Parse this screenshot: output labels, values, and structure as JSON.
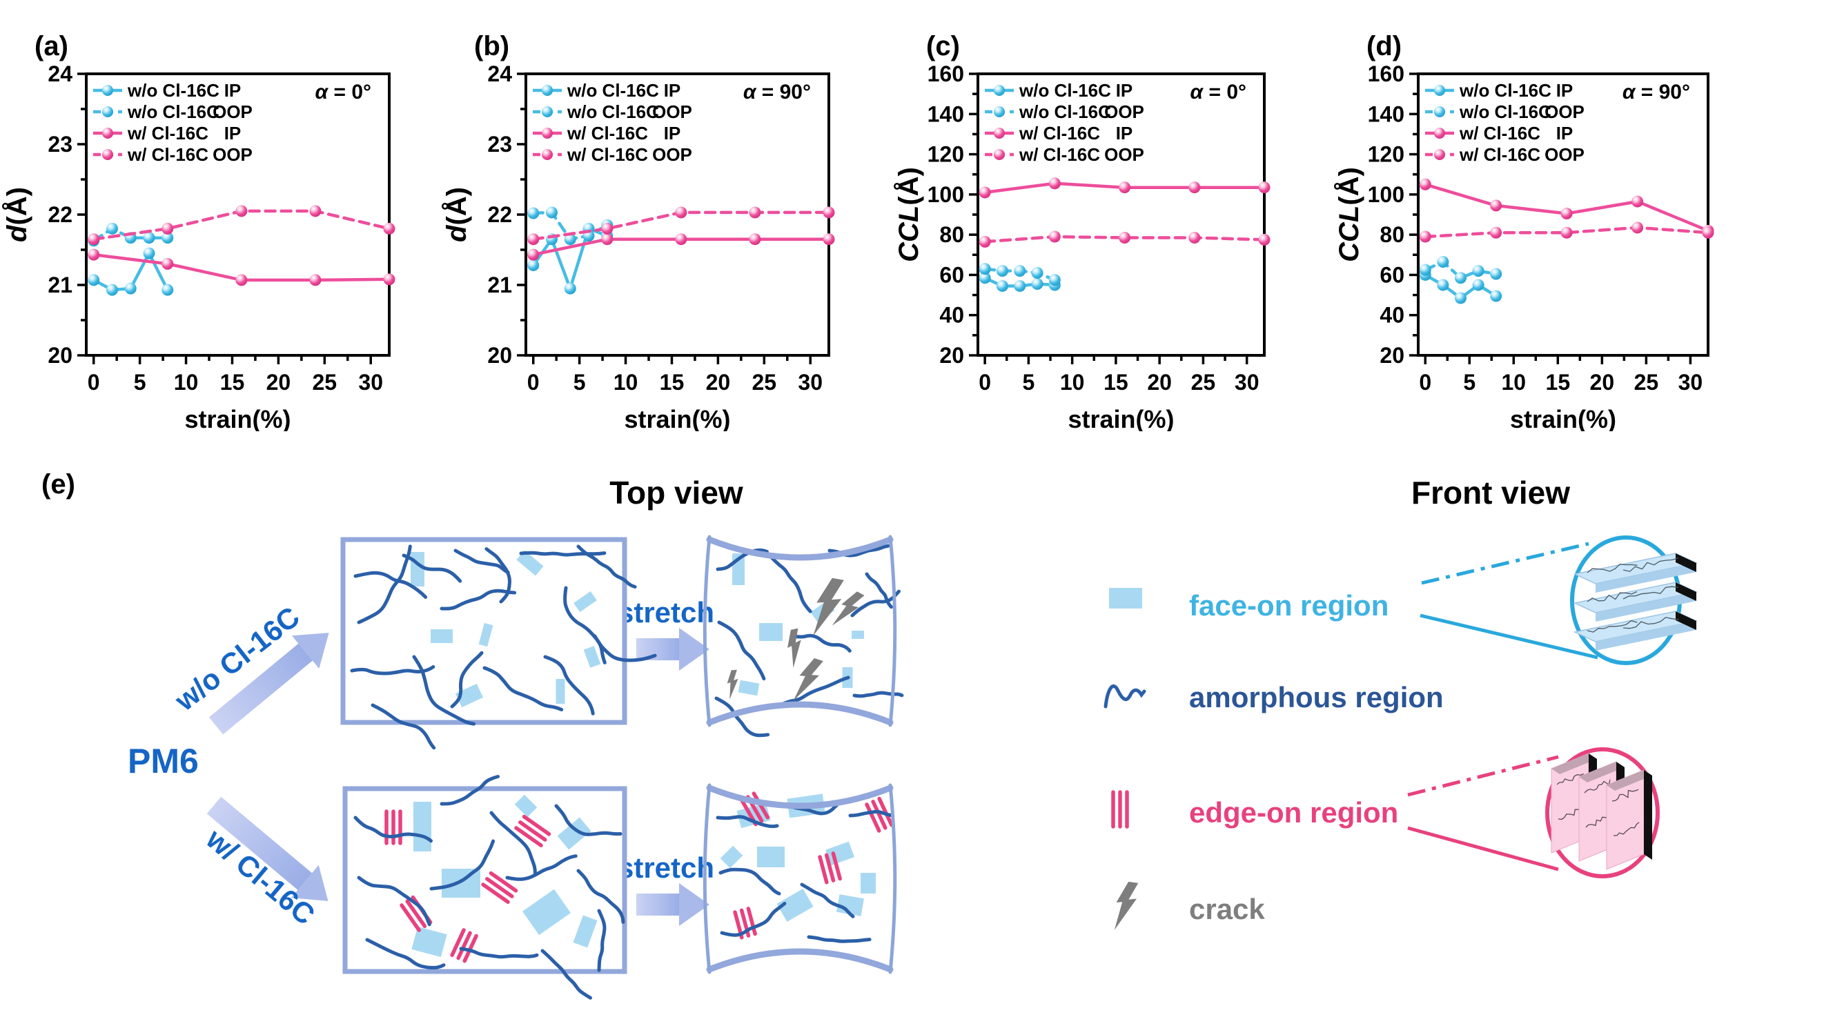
{
  "colors": {
    "cyan": "#45BCE5",
    "cyan_dark": "#1d9cc9",
    "pink": "#EE4D9B",
    "pink_dark": "#d42e7f",
    "axis": "#000000"
  },
  "chart_data": [
    {
      "key": "a",
      "type": "line",
      "panel_label": "(a)",
      "alpha_symbol": "α",
      "alpha_rest": " =  0°",
      "ylabel_italic": "d",
      "ylabel_rest": "(Å)",
      "xlabel": "strain(%)",
      "ylim": [
        20,
        24
      ],
      "yticks": [
        20,
        21,
        22,
        23,
        24
      ],
      "yminor": 0.5,
      "xlim": [
        -0.8,
        32
      ],
      "xticks": [
        0,
        5,
        10,
        15,
        20,
        25,
        30
      ],
      "xminor": 2.5,
      "legend_position": "top-left",
      "grid": false,
      "series": [
        {
          "name": "w/o Cl-16C",
          "orient": "IP",
          "color": "cyan",
          "dash": false,
          "x": [
            0,
            2,
            4,
            6,
            8
          ],
          "y": [
            21.07,
            20.93,
            20.95,
            21.45,
            20.93
          ]
        },
        {
          "name": "w/o Cl-16C",
          "orient": "OOP",
          "color": "cyan",
          "dash": true,
          "x": [
            0,
            2,
            4,
            6,
            8
          ],
          "y": [
            21.63,
            21.8,
            21.67,
            21.67,
            21.67
          ]
        },
        {
          "name": "w/  Cl-16C",
          "orient": "IP",
          "color": "pink",
          "dash": false,
          "x": [
            0,
            8,
            16,
            24,
            32
          ],
          "y": [
            21.43,
            21.3,
            21.07,
            21.07,
            21.08
          ]
        },
        {
          "name": "w/  Cl-16C",
          "orient": "OOP",
          "color": "pink",
          "dash": true,
          "x": [
            0,
            8,
            16,
            24,
            32
          ],
          "y": [
            21.65,
            21.8,
            22.05,
            22.05,
            21.8
          ]
        }
      ]
    },
    {
      "key": "b",
      "type": "line",
      "panel_label": "(b)",
      "alpha_symbol": "α",
      "alpha_rest": " =  90°",
      "ylabel_italic": "d",
      "ylabel_rest": "(Å)",
      "xlabel": "strain(%)",
      "ylim": [
        20,
        24
      ],
      "yticks": [
        20,
        21,
        22,
        23,
        24
      ],
      "yminor": 0.5,
      "xlim": [
        -0.8,
        32
      ],
      "xticks": [
        0,
        5,
        10,
        15,
        20,
        25,
        30
      ],
      "xminor": 2.5,
      "legend_position": "top-left",
      "grid": false,
      "series": [
        {
          "name": "w/o Cl-16C",
          "orient": "IP",
          "color": "cyan",
          "dash": false,
          "x": [
            0,
            2,
            4,
            6,
            8
          ],
          "y": [
            21.28,
            21.65,
            20.95,
            21.8,
            21.7
          ]
        },
        {
          "name": "w/o Cl-16C",
          "orient": "OOP",
          "color": "cyan",
          "dash": true,
          "x": [
            0,
            2,
            4,
            6,
            8
          ],
          "y": [
            22.02,
            22.03,
            21.65,
            21.7,
            21.85
          ]
        },
        {
          "name": "w/  Cl-16C",
          "orient": "IP",
          "color": "pink",
          "dash": false,
          "x": [
            0,
            8,
            16,
            24,
            32
          ],
          "y": [
            21.43,
            21.65,
            21.65,
            21.65,
            21.65
          ]
        },
        {
          "name": "w/  Cl-16C",
          "orient": "OOP",
          "color": "pink",
          "dash": true,
          "x": [
            0,
            8,
            16,
            24,
            32
          ],
          "y": [
            21.65,
            21.8,
            22.03,
            22.03,
            22.03
          ]
        }
      ]
    },
    {
      "key": "c",
      "type": "line",
      "panel_label": "(c)",
      "alpha_symbol": "α",
      "alpha_rest": " =  0°",
      "ylabel_italic": "CCL",
      "ylabel_rest": "(Å)",
      "xlabel": "strain(%)",
      "ylim": [
        20,
        160
      ],
      "yticks": [
        20,
        40,
        60,
        80,
        100,
        120,
        140,
        160
      ],
      "yminor": 10,
      "xlim": [
        -0.8,
        32
      ],
      "xticks": [
        0,
        5,
        10,
        15,
        20,
        25,
        30
      ],
      "xminor": 2.5,
      "legend_position": "top-left",
      "grid": false,
      "series": [
        {
          "name": "w/o Cl-16C",
          "orient": "IP",
          "color": "cyan",
          "dash": false,
          "x": [
            0,
            2,
            4,
            6,
            8
          ],
          "y": [
            58.5,
            54.5,
            54.5,
            55.5,
            55.0
          ]
        },
        {
          "name": "w/o Cl-16C",
          "orient": "OOP",
          "color": "cyan",
          "dash": true,
          "x": [
            0,
            2,
            4,
            6,
            8
          ],
          "y": [
            63.0,
            62.0,
            62.0,
            61.0,
            57.5
          ]
        },
        {
          "name": "w/  Cl-16C",
          "orient": "IP",
          "color": "pink",
          "dash": false,
          "x": [
            0,
            8,
            16,
            24,
            32
          ],
          "y": [
            101.0,
            105.5,
            103.5,
            103.5,
            103.5
          ]
        },
        {
          "name": "w/  Cl-16C",
          "orient": "OOP",
          "color": "pink",
          "dash": true,
          "x": [
            0,
            8,
            16,
            24,
            32
          ],
          "y": [
            76.5,
            79.0,
            78.5,
            78.5,
            77.5
          ]
        }
      ]
    },
    {
      "key": "d",
      "type": "line",
      "panel_label": "(d)",
      "alpha_symbol": "α",
      "alpha_rest": " =  90°",
      "ylabel_italic": "CCL",
      "ylabel_rest": "(Å)",
      "xlabel": "strain(%)",
      "ylim": [
        20,
        160
      ],
      "yticks": [
        20,
        40,
        60,
        80,
        100,
        120,
        140,
        160
      ],
      "yminor": 10,
      "xlim": [
        -0.8,
        32
      ],
      "xticks": [
        0,
        5,
        10,
        15,
        20,
        25,
        30
      ],
      "xminor": 2.5,
      "legend_position": "top-left",
      "grid": false,
      "series": [
        {
          "name": "w/o Cl-16C",
          "orient": "IP",
          "color": "cyan",
          "dash": false,
          "x": [
            0,
            2,
            4,
            6,
            8
          ],
          "y": [
            60.0,
            55.0,
            48.5,
            55.0,
            49.5
          ]
        },
        {
          "name": "w/o Cl-16C",
          "orient": "OOP",
          "color": "cyan",
          "dash": true,
          "x": [
            0,
            2,
            4,
            6,
            8
          ],
          "y": [
            62.5,
            66.5,
            58.5,
            62.0,
            60.5
          ]
        },
        {
          "name": "w/  Cl-16C",
          "orient": "IP",
          "color": "pink",
          "dash": false,
          "x": [
            0,
            8,
            16,
            24,
            32
          ],
          "y": [
            105.0,
            94.5,
            90.5,
            96.5,
            82.0
          ]
        },
        {
          "name": "w/  Cl-16C",
          "orient": "OOP",
          "color": "pink",
          "dash": true,
          "x": [
            0,
            8,
            16,
            24,
            32
          ],
          "y": [
            79.0,
            81.0,
            81.0,
            83.5,
            81.0
          ]
        }
      ]
    }
  ],
  "diagram": {
    "panel_label": "(e)",
    "top_view": "Top view",
    "front_view": "Front view",
    "polymer": "PM6",
    "route_without": "w/o Cl-16C",
    "route_with": "w/ Cl-16C",
    "stretch": "stretch",
    "legend": [
      {
        "id": "face-on",
        "label": "face-on region",
        "color": "#3FB3E3"
      },
      {
        "id": "amorphous",
        "label": "amorphous region",
        "color": "#2B5596"
      },
      {
        "id": "edge-on",
        "label": "edge-on region",
        "color": "#E8417E"
      },
      {
        "id": "crack",
        "label": "crack",
        "color": "#7E7E7E"
      }
    ],
    "colors": {
      "box_border": "#92A7DB",
      "chain": "#2B5FA8",
      "face_on_fill": "#A9D9F2",
      "edge_on": "#E8417E",
      "crack": "#7E7E7E",
      "blue_text": "#1565C6",
      "arrow_light": "#CBD3F4",
      "arrow_dark": "#9AAEE6",
      "front_cyan": "#29A8DD",
      "front_pink": "#E8417E",
      "slab_top": "#CBE6F8",
      "slab_front": "#A9CFEC",
      "pink_slab_front": "#FAD0E2",
      "pink_slab_top": "#C2A3B2",
      "slab_end": "#101010"
    }
  }
}
